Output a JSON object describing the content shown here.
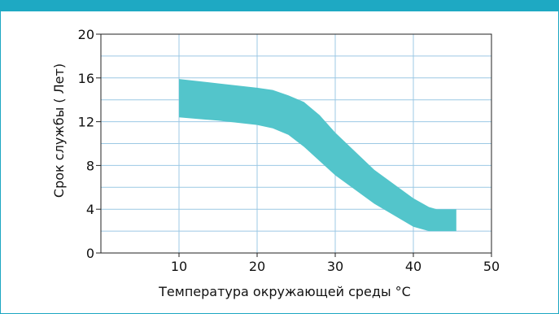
{
  "colors": {
    "frame": "#1da7c2",
    "band": "#53c5cb",
    "grid": "#9cc8e4",
    "axis": "#222222"
  },
  "chart_data": {
    "type": "area",
    "title": "",
    "xlabel": "Температура окружающей среды °C",
    "ylabel": "Срок службы ( Лет)",
    "xlim": [
      0,
      50
    ],
    "ylim": [
      0,
      20
    ],
    "x_ticks": [
      10,
      20,
      30,
      40,
      50
    ],
    "y_ticks": [
      0,
      4,
      8,
      12,
      16,
      20
    ],
    "grid": true,
    "series": [
      {
        "x": [
          10,
          15,
          20,
          22,
          24,
          26,
          28,
          30,
          35,
          40,
          42,
          43,
          45.5
        ],
        "lower": [
          12.4,
          12.1,
          11.7,
          11.4,
          10.8,
          9.7,
          8.4,
          7.1,
          4.5,
          2.4,
          2.0,
          2.0,
          2.0
        ],
        "upper": [
          15.9,
          15.5,
          15.1,
          14.9,
          14.4,
          13.8,
          12.6,
          11.0,
          7.6,
          5.0,
          4.2,
          4.0,
          4.0
        ]
      }
    ]
  }
}
